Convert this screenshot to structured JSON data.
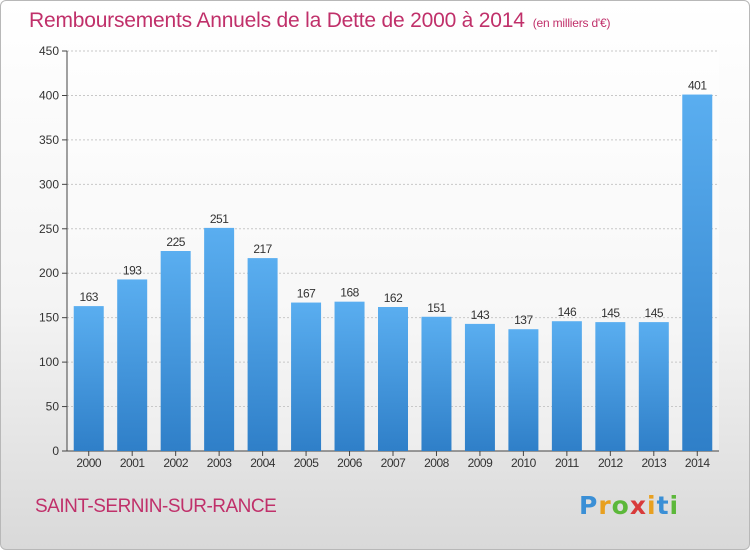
{
  "header": {
    "title": "Remboursements Annuels de la Dette de 2000 à 2014",
    "unit": "(en milliers d'€)"
  },
  "footer": {
    "place": "SAINT-SERNIN-SUR-RANCE",
    "logo": "Proxiti"
  },
  "colors": {
    "accent": "#c0306a",
    "bar_light": "#5aaef0",
    "bar_dark": "#2f7fc8"
  },
  "chart_data": {
    "type": "bar",
    "title": "Remboursements Annuels de la Dette de 2000 à 2014",
    "subtitle": "(en milliers d'€)",
    "xlabel": "",
    "ylabel": "",
    "categories": [
      "2000",
      "2001",
      "2002",
      "2003",
      "2004",
      "2005",
      "2006",
      "2007",
      "2008",
      "2009",
      "2010",
      "2011",
      "2012",
      "2013",
      "2014"
    ],
    "values": [
      163,
      193,
      225,
      251,
      217,
      167,
      168,
      162,
      151,
      143,
      137,
      146,
      145,
      145,
      401
    ],
    "ylim": [
      0,
      450
    ],
    "yticks": [
      0,
      50,
      100,
      150,
      200,
      250,
      300,
      350,
      400,
      450
    ],
    "grid": true,
    "legend": "none"
  }
}
